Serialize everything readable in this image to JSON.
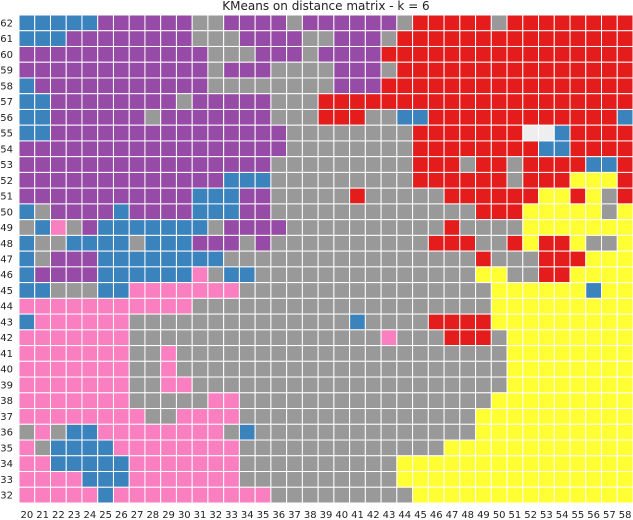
{
  "chart_data": {
    "type": "heatmap",
    "title": "KMeans on distance matrix - k = 6",
    "xlabel": "",
    "ylabel": "",
    "grid": true,
    "x": [
      20,
      21,
      22,
      23,
      24,
      25,
      26,
      27,
      28,
      29,
      30,
      31,
      32,
      33,
      34,
      35,
      36,
      37,
      38,
      39,
      40,
      41,
      42,
      43,
      44,
      45,
      46,
      47,
      48,
      49,
      50,
      51,
      52,
      53,
      54,
      55,
      56,
      57,
      58
    ],
    "y": [
      62,
      61,
      60,
      59,
      58,
      57,
      56,
      55,
      54,
      53,
      52,
      51,
      50,
      49,
      48,
      47,
      46,
      45,
      44,
      43,
      42,
      41,
      40,
      39,
      38,
      37,
      36,
      35,
      34,
      33,
      32
    ],
    "colors": {
      "B": "#3b83bd",
      "P": "#964ba6",
      "G": "#999999",
      "R": "#e41c1c",
      "K": "#f97fc0",
      "Y": "#ffff33",
      "W": "#eeeeee"
    },
    "row_codes": [
      "BBBBBPPPPPPGGPPPPGPPPPPPGRRRRRGRRRRRRRR",
      "BBBPPPPPPPPGGGPPPPGGPPPGRRRRRRRRRRRRRRR",
      "PPPPPPPPPPPPGGGPPPGPPPPRRRRRRRRRRRRRRRR",
      "PPPPPPPPPPPPGPPPGGGGPPPGRRRRRRRRRRRRRRR",
      "BPPPPPPPPPPPGGGGGGGGPPPRRRRRRRRRRRRRRRR",
      "BBPPPPPPPPGPPPPPGGGRRRRRRRRRRRRRRRRRRRR",
      "BBPPPPPPGPPPPPPPGGGRRRGGBBRRRRRRRRRRRRB",
      "BBPPPPPPPPPPPPPPPGGGGGGGGRRRRRRRWWBRRRR",
      "PPPPPPPPPPPPPPPPPGGGGGGGGRRRRRRRRBBRRRR",
      "PPPPPPPPPPPPPPPPGGGGGGGGGRRRGRRGRRRRBBR",
      "PPPPPPPPPPPPPBBBGGGGGGGGGRRRRRRGRRRYYYR",
      "PPPPPPPPPPPBBBPPGGGGGRGGGGGRRRRRRYYRYGR",
      "BGPPPPBPPPPBBBPPGGGGGGGGGGGGGRRRYYYYYGY",
      "GBKGPBBBBBBBGPPPPGGGGGGGGGGRGGGGYYYYYYY",
      "BGGBBBBGBBBPPPGPGGGGGGGGGGRRRGGRYRRYGGY",
      "BGPPPBBBBBBBBGGGGGGGGGGGGGGGGRGGGRRRYYY",
      "BPPPPBBBBBBKGBBGGGGGGGGGGGGGGYYGGRRYYYY",
      "BBGGGBBKKKKKKKGGGGGGGGGGGGGGGGYYYYYYBYY",
      "KKKKKKKKKKKGGGGGGGGGGGGGGGGGGGYYYYYYYYY",
      "BKKKKKKGGGGGGGGGGGGGGBGGGGRRRRYYYYYYYYY",
      "KKKKKKKGGGGGGGGGGGGGGGGKGGGRRRGYYYYYYYY",
      "KKKKKKKGGKGGGGGGGGGGGGGGGGGGGGGYYYYYYYY",
      "KKKKKKKGGKGGGGGGGGGGGGGGGGGGGGGYYYYYYYY",
      "KKKKKKKGGKKGGGGGGGGGGGGGGGGGGGGYYYYYYYY",
      "KKKKKKKGGGGGKKGGGGGGGGGGGGGGGGYYYYYYYYY",
      "KKKKKKKKGGKKKKGGGGGGGGGGGGGGGYYYYYYYYYY",
      "GKGBBKKKKKKKKGBGGGGGGGGGGGGGGYYYYYYYYYY",
      "KGBBBBKKKKKKKKGGGGGGGGGGGGGYYYYYYYYYYYY",
      "KKBBBBBKKKKKKKGGGGGGGGGGYYYYYYYYYYYYYYY",
      "KKKKBBBKKKKKKKGGGGGGGGGGYYYYYYYYYYYYYYY",
      "KKKKKBKKKKKKKKKKGGGGGGGGGYYYYYYYYYYYYYY"
    ]
  }
}
